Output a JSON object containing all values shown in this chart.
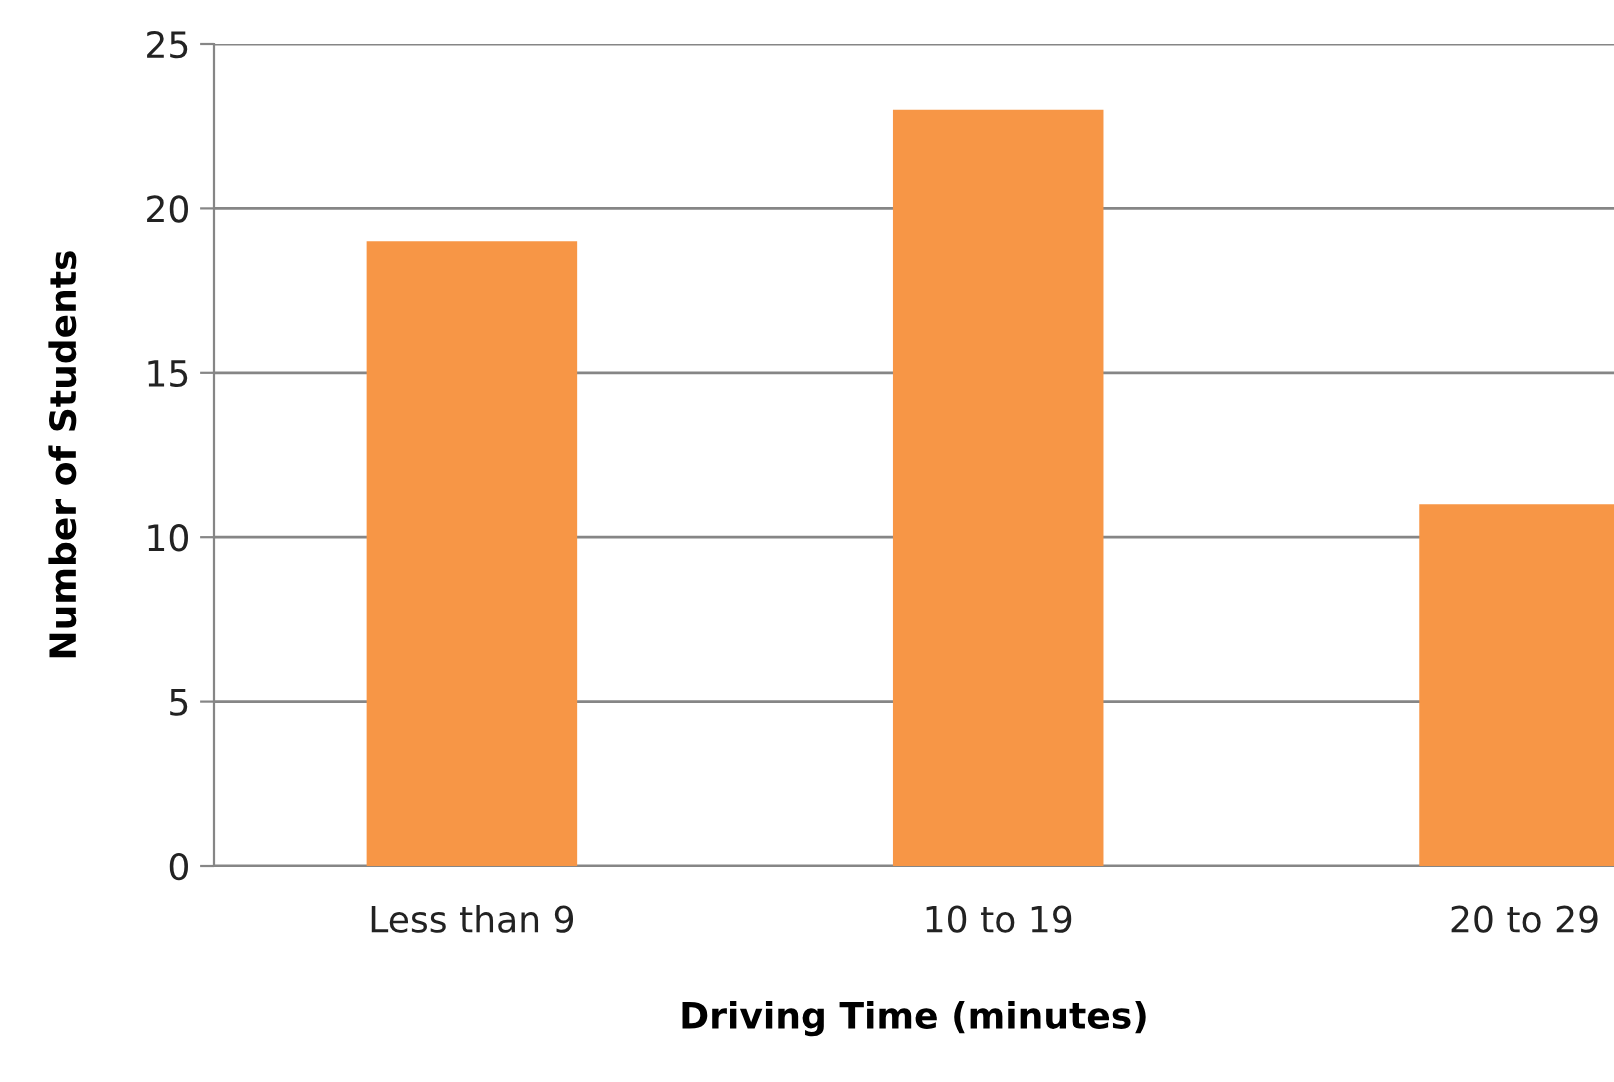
{
  "chart_data": {
    "type": "bar",
    "xlabel": "Driving Time (minutes)",
    "ylabel": "Number of Students",
    "categories": [
      "Less than 9",
      "10 to 19",
      "20 to 29"
    ],
    "values": [
      19,
      23,
      11
    ],
    "color": "#f79646",
    "ylim": [
      0,
      25
    ],
    "yticks": [
      0,
      5,
      10,
      15,
      20,
      25
    ],
    "grid": "y"
  }
}
